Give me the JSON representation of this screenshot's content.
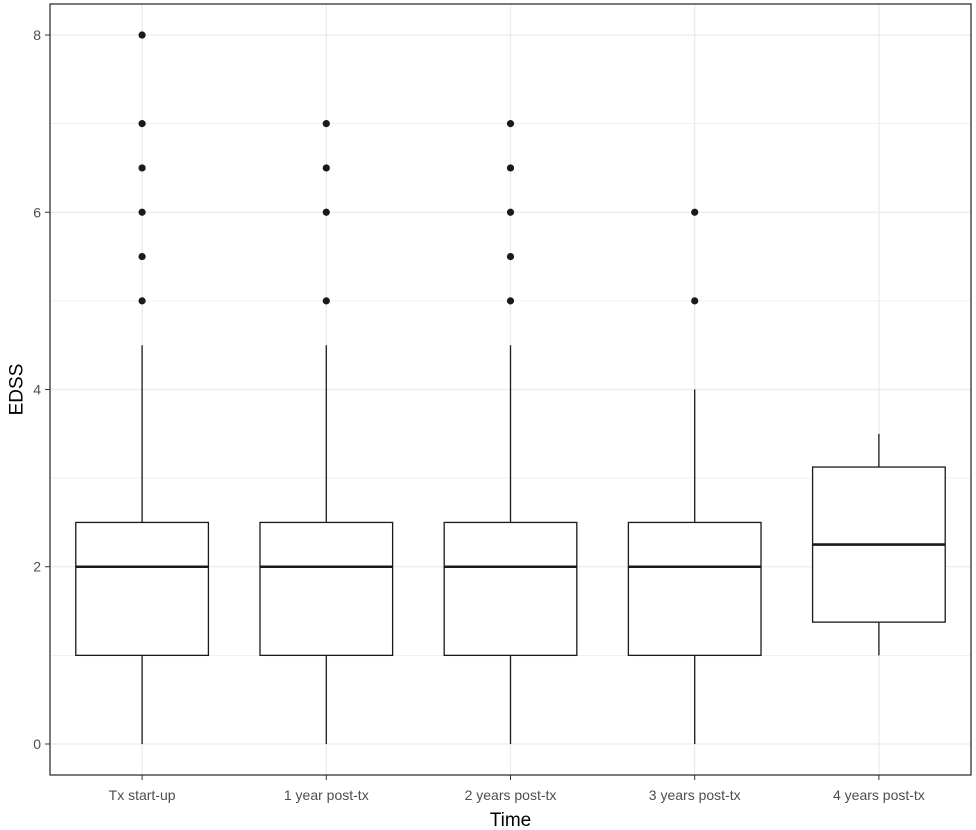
{
  "chart_data": {
    "type": "boxplot",
    "title": "",
    "xlabel": "Time",
    "ylabel": "EDSS",
    "ylim": [
      -0.35,
      8.35
    ],
    "yticks": [
      0,
      2,
      4,
      6,
      8
    ],
    "grid": true,
    "categories": [
      "Tx start-up",
      "1 year post-tx",
      "2 years post-tx",
      "3 years post-tx",
      "4 years post-tx"
    ],
    "boxes": [
      {
        "category": "Tx start-up",
        "whisker_low": 0,
        "q1": 1,
        "median": 2,
        "q3": 2.5,
        "whisker_high": 4.5,
        "outliers": [
          5,
          5.5,
          6,
          6.5,
          7,
          8
        ]
      },
      {
        "category": "1 year post-tx",
        "whisker_low": 0,
        "q1": 1,
        "median": 2,
        "q3": 2.5,
        "whisker_high": 4.5,
        "outliers": [
          5,
          6,
          6.5,
          7
        ]
      },
      {
        "category": "2 years post-tx",
        "whisker_low": 0,
        "q1": 1,
        "median": 2,
        "q3": 2.5,
        "whisker_high": 4.5,
        "outliers": [
          5,
          5.5,
          6,
          6.5,
          7
        ]
      },
      {
        "category": "3 years post-tx",
        "whisker_low": 0,
        "q1": 1,
        "median": 2,
        "q3": 2.5,
        "whisker_high": 4,
        "outliers": [
          5,
          6
        ]
      },
      {
        "category": "4 years post-tx",
        "whisker_low": 1,
        "q1": 1.375,
        "median": 2.25,
        "q3": 3.125,
        "whisker_high": 3.5,
        "outliers": []
      }
    ],
    "colors": {
      "box_fill": "#ffffff",
      "box_stroke": "#1a1a1a",
      "outlier": "#1a1a1a",
      "grid_major": "#ebebeb",
      "panel_border": "#333333",
      "tick_label": "#4d4d4d"
    }
  }
}
